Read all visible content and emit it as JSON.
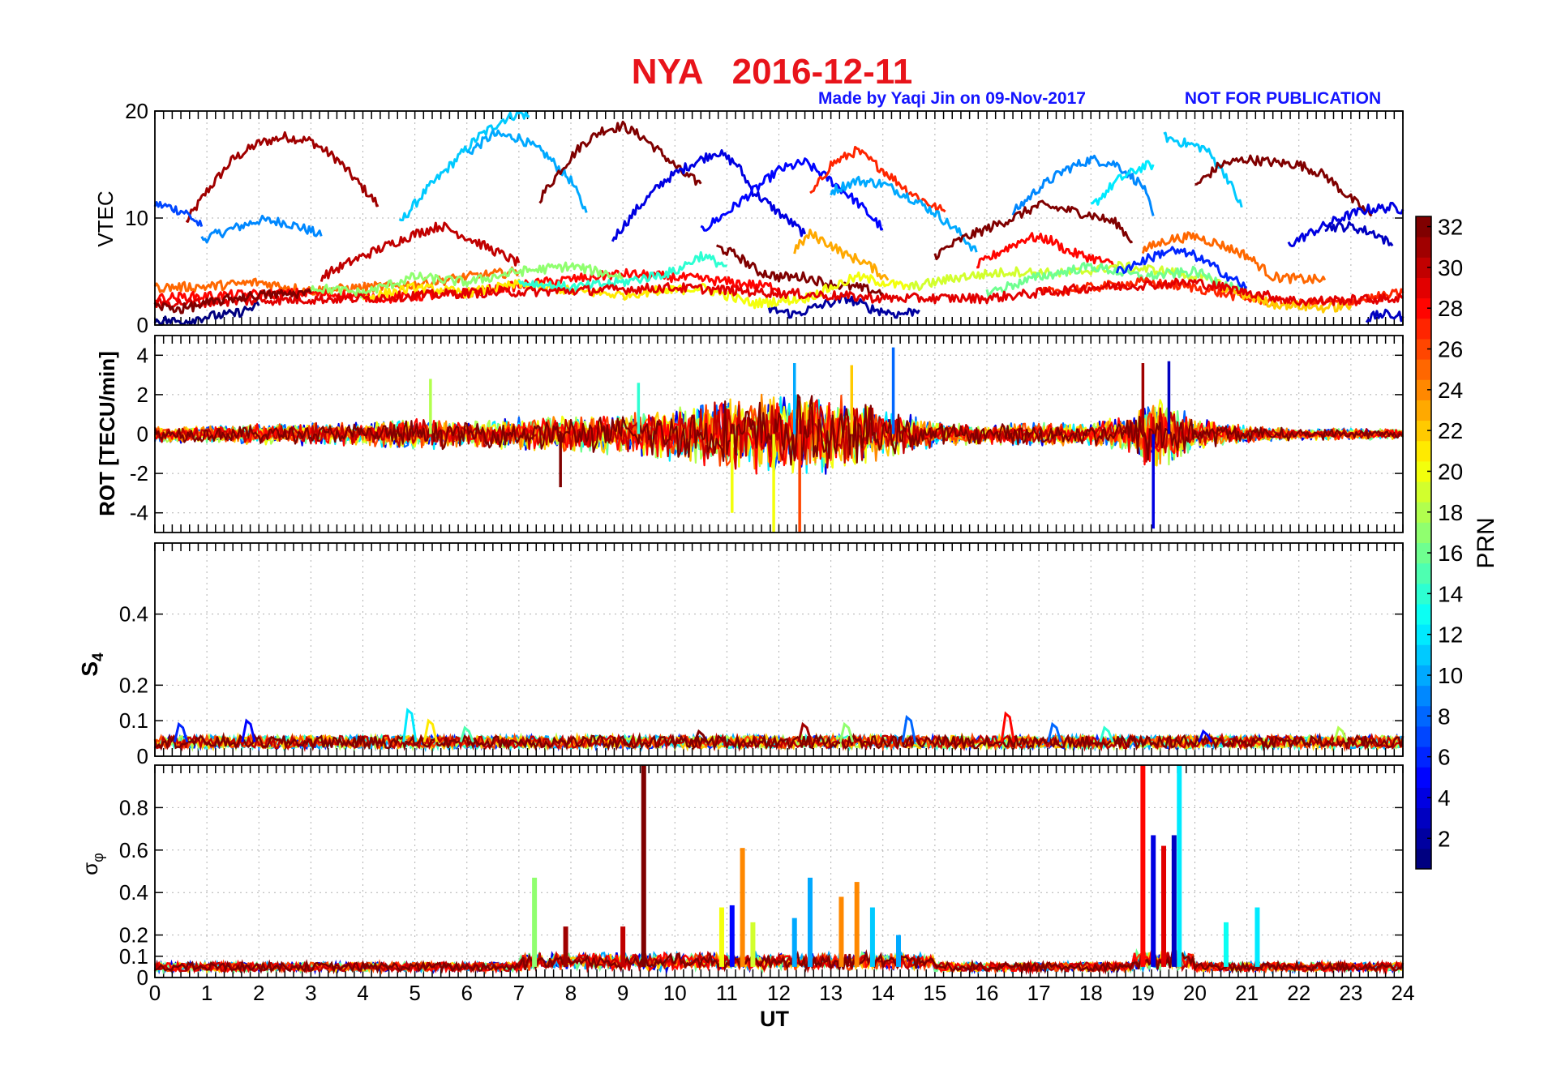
{
  "figure": {
    "title": "NYA   2016-12-11",
    "credit": "Made by Yaqi Jin on 09-Nov-2017",
    "notice": "NOT FOR PUBLICATION",
    "title_color": "#e8141b",
    "credit_color": "#1414ff",
    "xlabel": "UT"
  },
  "chart_data": [
    {
      "type": "line",
      "id": "vtec",
      "ylabel": "VTEC",
      "xlim": [
        0,
        24
      ],
      "ylim": [
        0,
        20
      ],
      "yticks": [
        0,
        10,
        20
      ],
      "grid": true,
      "series_note": "one line per GPS PRN, colored by PRN (colorbar)",
      "series": [
        {
          "prn": 31,
          "x": [
            0.6,
            1.0,
            1.5,
            2.0,
            2.5,
            3.0,
            3.5,
            4.0,
            4.3
          ],
          "y": [
            9.6,
            12.5,
            15.5,
            17.0,
            17.6,
            17.2,
            15.5,
            12.8,
            11.2
          ]
        },
        {
          "prn": 9,
          "x": [
            0.9,
            1.5,
            2.0,
            2.5,
            3.0,
            3.2
          ],
          "y": [
            8.0,
            9.0,
            9.8,
            9.6,
            8.8,
            8.3
          ]
        },
        {
          "prn": 7,
          "x": [
            0.0,
            0.3,
            0.6,
            0.9
          ],
          "y": [
            11.3,
            11.0,
            10.5,
            9.2
          ]
        },
        {
          "prn": 11,
          "x": [
            4.7,
            5.2,
            5.7,
            6.2,
            6.7,
            7.0,
            7.2
          ],
          "y": [
            9.5,
            12.5,
            15.0,
            17.5,
            19.2,
            19.8,
            19.5
          ]
        },
        {
          "prn": 10,
          "x": [
            6.0,
            6.5,
            7.0,
            7.5,
            8.0,
            8.3
          ],
          "y": [
            16.0,
            17.8,
            17.5,
            16.0,
            13.5,
            10.5
          ]
        },
        {
          "prn": 32,
          "x": [
            7.4,
            7.8,
            8.2,
            8.6,
            9.0,
            9.4,
            9.8,
            10.2,
            10.5
          ],
          "y": [
            11.8,
            14.5,
            16.8,
            18.2,
            18.6,
            17.5,
            15.8,
            14.0,
            13.2
          ]
        },
        {
          "prn": 4,
          "x": [
            8.8,
            9.3,
            9.8,
            10.3,
            10.8,
            11.2,
            11.5,
            12.0,
            12.5
          ],
          "y": [
            8.0,
            11.0,
            13.5,
            15.0,
            16.2,
            15.0,
            12.5,
            10.5,
            8.5
          ]
        },
        {
          "prn": 5,
          "x": [
            10.5,
            11.0,
            11.5,
            12.0,
            12.5,
            13.0,
            13.5,
            14.0
          ],
          "y": [
            8.8,
            10.5,
            12.5,
            14.5,
            15.2,
            13.5,
            11.5,
            9.0
          ]
        },
        {
          "prn": 27,
          "x": [
            12.6,
            13.0,
            13.5,
            14.0,
            14.5,
            15.0,
            15.2
          ],
          "y": [
            12.0,
            15.0,
            16.3,
            14.5,
            12.5,
            11.0,
            10.6
          ]
        },
        {
          "prn": 10,
          "x": [
            13.0,
            13.5,
            14.0,
            14.5,
            15.0,
            15.5,
            15.8
          ],
          "y": [
            12.5,
            13.5,
            13.2,
            12.0,
            10.5,
            8.5,
            6.8
          ]
        },
        {
          "prn": 9,
          "x": [
            16.5,
            17.0,
            17.5,
            18.0,
            18.5,
            19.0,
            19.2
          ],
          "y": [
            10.5,
            12.8,
            14.5,
            15.5,
            15.0,
            13.0,
            10.2
          ]
        },
        {
          "prn": 12,
          "x": [
            18.0,
            18.5,
            19.0,
            19.2
          ],
          "y": [
            11.0,
            13.5,
            14.8,
            15.0
          ]
        },
        {
          "prn": 11,
          "x": [
            19.4,
            19.8,
            20.2,
            20.6,
            20.9
          ],
          "y": [
            17.6,
            17.0,
            16.5,
            14.0,
            11.0
          ]
        },
        {
          "prn": 32,
          "x": [
            20.0,
            20.5,
            21.0,
            21.5,
            22.0,
            22.5,
            23.0,
            23.4
          ],
          "y": [
            13.0,
            15.0,
            15.5,
            15.2,
            15.0,
            14.0,
            11.8,
            10.2
          ]
        },
        {
          "prn": 4,
          "x": [
            21.8,
            22.3,
            22.8,
            23.3,
            23.8,
            24.0
          ],
          "y": [
            7.5,
            8.8,
            10.0,
            10.8,
            11.0,
            10.8
          ]
        },
        {
          "prn": 3,
          "x": [
            22.5,
            23.0,
            23.5,
            23.8
          ],
          "y": [
            9.2,
            9.2,
            8.5,
            7.4
          ]
        },
        {
          "prn": 30,
          "x": [
            3.2,
            3.8,
            4.5,
            5.0,
            5.5,
            6.0,
            6.5,
            7.0
          ],
          "y": [
            4.5,
            6.0,
            7.5,
            8.5,
            9.3,
            8.2,
            7.0,
            5.8
          ]
        },
        {
          "prn": 28,
          "x": [
            15.8,
            16.3,
            16.8,
            17.2,
            17.6,
            18.0,
            18.5
          ],
          "y": [
            5.5,
            7.0,
            8.2,
            8.0,
            6.8,
            6.3,
            5.5
          ]
        },
        {
          "prn": 32,
          "x": [
            15.0,
            15.5,
            16.0,
            16.5,
            17.0,
            17.5,
            18.0,
            18.5,
            18.8
          ],
          "y": [
            6.5,
            8.0,
            9.0,
            10.0,
            11.2,
            10.8,
            10.3,
            9.5,
            7.8
          ]
        },
        {
          "prn": 25,
          "x": [
            19.0,
            19.5,
            20.0,
            20.5,
            21.0,
            21.5,
            22.0,
            22.5
          ],
          "y": [
            7.0,
            8.0,
            8.3,
            7.5,
            6.5,
            4.5,
            4.3,
            4.2
          ]
        },
        {
          "prn": 32,
          "x": [
            10.8,
            11.2,
            11.6,
            12.0,
            12.5,
            13.0,
            13.5,
            14.0
          ],
          "y": [
            7.3,
            6.5,
            5.0,
            4.5,
            4.5,
            3.8,
            3.5,
            3.0
          ]
        },
        {
          "prn": 23,
          "x": [
            12.3,
            12.6,
            13.0,
            13.3,
            13.6,
            13.9,
            14.1
          ],
          "y": [
            7.0,
            8.5,
            7.5,
            6.5,
            6.0,
            5.0,
            4.2
          ]
        },
        {
          "prn": 1,
          "x": [
            0.0,
            0.5,
            1.0,
            1.5,
            2.0
          ],
          "y": [
            0.5,
            0.3,
            0.8,
            1.0,
            1.8
          ]
        },
        {
          "prn": 2,
          "x": [
            11.8,
            12.3,
            12.8,
            13.3,
            13.8,
            14.3,
            14.7
          ],
          "y": [
            1.5,
            1.0,
            1.8,
            2.5,
            1.5,
            1.0,
            1.4
          ]
        },
        {
          "prn": 3,
          "x": [
            23.3,
            23.6,
            24.0
          ],
          "y": [
            0.6,
            1.0,
            0.8
          ]
        },
        {
          "prn": 25,
          "x": [
            0.0,
            1.0,
            2.0,
            3.0,
            4.0,
            5.0,
            6.0,
            7.0
          ],
          "y": [
            3.5,
            3.6,
            4.0,
            3.2,
            3.5,
            3.8,
            4.5,
            5.0
          ]
        },
        {
          "prn": 28,
          "x": [
            0.0,
            1.5,
            3.0,
            4.5,
            6.0,
            7.5,
            9.0,
            10.5,
            12.0
          ],
          "y": [
            2.5,
            2.8,
            3.0,
            2.5,
            3.0,
            4.0,
            4.8,
            4.3,
            3.5
          ]
        },
        {
          "prn": 17,
          "x": [
            3.0,
            4.0,
            5.0,
            6.0,
            7.0,
            8.0,
            9.0
          ],
          "y": [
            3.5,
            3.0,
            4.5,
            4.0,
            5.0,
            5.5,
            4.5
          ]
        },
        {
          "prn": 21,
          "x": [
            4.0,
            5.0,
            6.0,
            7.0,
            8.0,
            9.0,
            10.0
          ],
          "y": [
            2.5,
            3.5,
            3.0,
            3.8,
            3.2,
            2.8,
            3.5
          ]
        },
        {
          "prn": 14,
          "x": [
            7.0,
            8.0,
            9.0,
            10.0,
            10.5,
            11.0
          ],
          "y": [
            4.0,
            3.5,
            4.0,
            5.0,
            6.5,
            5.5
          ]
        },
        {
          "prn": 20,
          "x": [
            9.5,
            10.5,
            11.5,
            12.5,
            13.5,
            14.5
          ],
          "y": [
            3.0,
            3.5,
            2.0,
            2.5,
            4.5,
            3.5
          ]
        },
        {
          "prn": 19,
          "x": [
            14.5,
            15.5,
            16.5,
            17.5,
            18.5,
            19.5,
            20.5
          ],
          "y": [
            3.5,
            4.5,
            5.0,
            4.8,
            5.5,
            5.0,
            4.0
          ]
        },
        {
          "prn": 16,
          "x": [
            16.0,
            17.0,
            18.0,
            19.0,
            20.0,
            21.0
          ],
          "y": [
            3.0,
            4.5,
            5.5,
            4.5,
            5.0,
            3.0
          ]
        },
        {
          "prn": 27,
          "x": [
            17.0,
            18.0,
            19.0,
            20.0,
            21.0,
            22.0,
            23.0,
            24.0
          ],
          "y": [
            3.0,
            3.5,
            4.0,
            3.5,
            2.5,
            2.0,
            2.2,
            3.0
          ]
        },
        {
          "prn": 22,
          "x": [
            20.5,
            21.5,
            22.5,
            23.0
          ],
          "y": [
            3.5,
            2.0,
            1.6,
            1.8
          ]
        },
        {
          "prn": 29,
          "x": [
            0.0,
            2.0,
            4.0,
            6.0,
            8.0,
            10.0,
            12.0,
            14.0,
            16.0,
            18.0,
            20.0,
            22.0,
            24.0
          ],
          "y": [
            2.0,
            2.3,
            2.5,
            3.0,
            3.2,
            3.5,
            3.0,
            2.5,
            2.5,
            3.5,
            4.0,
            2.2,
            2.5
          ]
        },
        {
          "prn": 6,
          "x": [
            18.5,
            19.0,
            19.5,
            20.0,
            20.5,
            21.0
          ],
          "y": [
            5.0,
            6.0,
            7.0,
            6.5,
            5.0,
            3.5
          ]
        },
        {
          "prn": 32,
          "x": [
            0.0,
            0.5,
            1.0,
            1.5,
            2.0,
            3.0
          ],
          "y": [
            1.8,
            1.5,
            2.0,
            2.5,
            2.8,
            3.0
          ]
        }
      ]
    },
    {
      "type": "line",
      "id": "rot",
      "ylabel": "ROT [TECU/min]",
      "xlim": [
        0,
        24
      ],
      "ylim": [
        -5,
        5
      ],
      "yticks": [
        -4,
        -2,
        0,
        2,
        4
      ],
      "grid": true,
      "envelope_note": "dense noisy ROT values per PRN; amplitude envelope (TECU/min) over UT",
      "envelope": {
        "x": [
          0,
          2,
          4,
          5,
          6,
          7,
          8,
          9,
          10,
          11,
          12,
          12.5,
          13,
          13.5,
          14,
          15,
          16,
          17,
          18,
          18.8,
          19.2,
          19.6,
          20,
          21,
          22,
          24
        ],
        "amp": [
          0.8,
          1.0,
          1.2,
          1.5,
          1.3,
          1.6,
          1.8,
          2.0,
          2.8,
          3.5,
          4.0,
          4.2,
          3.8,
          3.5,
          2.5,
          1.2,
          1.0,
          1.2,
          1.1,
          2.0,
          4.0,
          3.0,
          1.6,
          0.8,
          0.6,
          0.5
        ]
      },
      "spikes": [
        {
          "x": 11.9,
          "y": -5.0,
          "prn": 20
        },
        {
          "x": 12.4,
          "y": -5.0,
          "prn": 26
        },
        {
          "x": 14.2,
          "y": 4.4,
          "prn": 8
        },
        {
          "x": 19.2,
          "y": -4.8,
          "prn": 4
        },
        {
          "x": 19.5,
          "y": 3.7,
          "prn": 3
        },
        {
          "x": 19.0,
          "y": 3.6,
          "prn": 31
        },
        {
          "x": 13.4,
          "y": 3.5,
          "prn": 22
        },
        {
          "x": 12.3,
          "y": 3.6,
          "prn": 10
        },
        {
          "x": 11.1,
          "y": -4.0,
          "prn": 20
        },
        {
          "x": 7.8,
          "y": -2.7,
          "prn": 32
        },
        {
          "x": 5.3,
          "y": 2.8,
          "prn": 18
        },
        {
          "x": 9.3,
          "y": 2.6,
          "prn": 14
        }
      ]
    },
    {
      "type": "line",
      "id": "s4",
      "ylabel": "S4",
      "xlim": [
        0,
        24
      ],
      "ylim": [
        0,
        0.6
      ],
      "yticks": [
        0,
        0.1,
        0.2,
        0.4
      ],
      "grid": true,
      "baseline": 0.04,
      "peaks": [
        {
          "x": 0.5,
          "y": 0.09,
          "prn": 6
        },
        {
          "x": 1.8,
          "y": 0.1,
          "prn": 5
        },
        {
          "x": 4.9,
          "y": 0.13,
          "prn": 12
        },
        {
          "x": 5.3,
          "y": 0.1,
          "prn": 21
        },
        {
          "x": 6.0,
          "y": 0.08,
          "prn": 15
        },
        {
          "x": 10.5,
          "y": 0.07,
          "prn": 32
        },
        {
          "x": 12.5,
          "y": 0.09,
          "prn": 31
        },
        {
          "x": 13.3,
          "y": 0.09,
          "prn": 17
        },
        {
          "x": 14.5,
          "y": 0.11,
          "prn": 8
        },
        {
          "x": 16.4,
          "y": 0.12,
          "prn": 28
        },
        {
          "x": 17.3,
          "y": 0.09,
          "prn": 8
        },
        {
          "x": 18.3,
          "y": 0.08,
          "prn": 14
        },
        {
          "x": 20.2,
          "y": 0.07,
          "prn": 5
        },
        {
          "x": 22.8,
          "y": 0.08,
          "prn": 18
        }
      ]
    },
    {
      "type": "line",
      "id": "sigma_phi",
      "ylabel": "σφ",
      "xlim": [
        0,
        24
      ],
      "ylim": [
        0,
        1
      ],
      "yticks": [
        0,
        0.1,
        0.2,
        0.4,
        0.6,
        0.8
      ],
      "grid": true,
      "baseline": 0.05,
      "peaks": [
        {
          "x": 7.3,
          "y": 0.47,
          "prn": 17
        },
        {
          "x": 7.9,
          "y": 0.24,
          "prn": 31
        },
        {
          "x": 9.4,
          "y": 1.0,
          "prn": 32
        },
        {
          "x": 9.0,
          "y": 0.24,
          "prn": 30
        },
        {
          "x": 10.9,
          "y": 0.33,
          "prn": 20
        },
        {
          "x": 11.1,
          "y": 0.34,
          "prn": 5
        },
        {
          "x": 11.3,
          "y": 0.61,
          "prn": 24
        },
        {
          "x": 11.5,
          "y": 0.26,
          "prn": 19
        },
        {
          "x": 12.3,
          "y": 0.28,
          "prn": 10
        },
        {
          "x": 12.6,
          "y": 0.47,
          "prn": 10
        },
        {
          "x": 13.2,
          "y": 0.38,
          "prn": 24
        },
        {
          "x": 13.5,
          "y": 0.45,
          "prn": 24
        },
        {
          "x": 13.8,
          "y": 0.33,
          "prn": 11
        },
        {
          "x": 14.3,
          "y": 0.2,
          "prn": 10
        },
        {
          "x": 19.0,
          "y": 1.0,
          "prn": 28
        },
        {
          "x": 19.2,
          "y": 0.67,
          "prn": 4
        },
        {
          "x": 19.4,
          "y": 0.62,
          "prn": 29
        },
        {
          "x": 19.6,
          "y": 0.67,
          "prn": 3
        },
        {
          "x": 19.7,
          "y": 1.0,
          "prn": 12
        },
        {
          "x": 20.6,
          "y": 0.26,
          "prn": 13
        },
        {
          "x": 21.2,
          "y": 0.33,
          "prn": 12
        }
      ]
    }
  ],
  "colorbar": {
    "label": "PRN",
    "range": [
      1,
      32
    ],
    "ticks": [
      2,
      4,
      6,
      8,
      10,
      12,
      14,
      16,
      18,
      20,
      22,
      24,
      26,
      28,
      30,
      32
    ],
    "colormap": "jet"
  },
  "xticks": [
    0,
    1,
    2,
    3,
    4,
    5,
    6,
    7,
    8,
    9,
    10,
    11,
    12,
    13,
    14,
    15,
    16,
    17,
    18,
    19,
    20,
    21,
    22,
    23,
    24
  ]
}
